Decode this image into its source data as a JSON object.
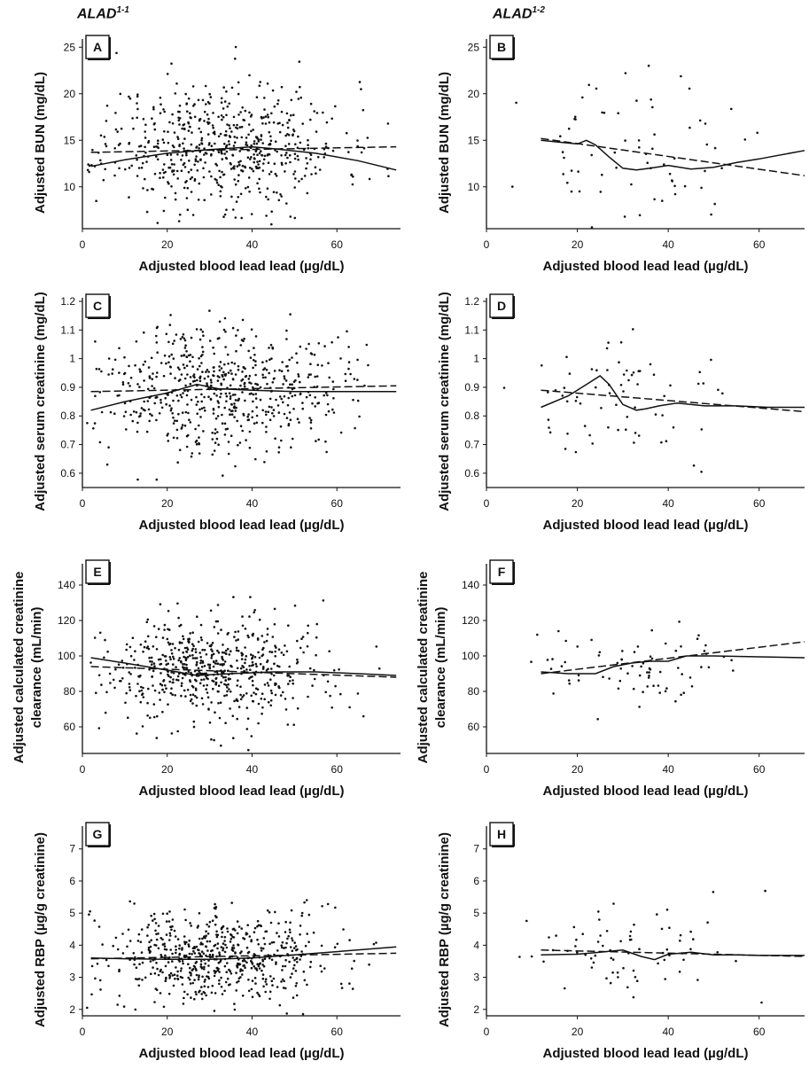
{
  "columns": {
    "left": {
      "base": "ALAD",
      "sup": "1-1"
    },
    "right": {
      "base": "ALAD",
      "sup": "1-2"
    }
  },
  "chart_data": [
    {
      "id": "A",
      "type": "scatter",
      "column": "left",
      "xlabel": "Adjusted blood lead lead (µg/dL)",
      "ylabel": [
        "Adjusted BUN (mg/dL)"
      ],
      "xlim": [
        0,
        75
      ],
      "ylim": [
        5.5,
        25.5
      ],
      "xticks": [
        0,
        20,
        40,
        60
      ],
      "yticks": [
        10,
        15,
        20,
        25
      ],
      "n_points": 620,
      "seed": 11,
      "cluster": {
        "x_mean": 33,
        "x_sd": 14,
        "y_mean": 14.5,
        "y_sd": 3.4
      },
      "series": [
        {
          "name": "",
          "style": "solid",
          "x": [
            2,
            10,
            20,
            30,
            40,
            45,
            55,
            65,
            74
          ],
          "y": [
            12.2,
            12.9,
            13.6,
            14.0,
            14.3,
            14.1,
            13.6,
            12.8,
            11.8
          ]
        },
        {
          "name": "",
          "style": "dashed",
          "x": [
            2,
            74
          ],
          "y": [
            13.7,
            14.3
          ]
        }
      ]
    },
    {
      "id": "B",
      "type": "scatter",
      "column": "right",
      "xlabel": "Adjusted blood lead lead (µg/dL)",
      "ylabel": [
        "Adjusted BUN (mg/dL)"
      ],
      "xlim": [
        0,
        70
      ],
      "ylim": [
        5.5,
        25.5
      ],
      "xticks": [
        0,
        20,
        40,
        60
      ],
      "yticks": [
        10,
        15,
        20,
        25
      ],
      "n_points": 70,
      "seed": 23,
      "cluster": {
        "x_mean": 32,
        "x_sd": 12,
        "y_mean": 13.5,
        "y_sd": 3.8
      },
      "series": [
        {
          "name": "",
          "style": "solid",
          "x": [
            12,
            20,
            22,
            24,
            27,
            30,
            33,
            36,
            40,
            45,
            50,
            55,
            60,
            70
          ],
          "y": [
            15.0,
            14.6,
            15.0,
            14.5,
            13.2,
            12.0,
            11.8,
            12.0,
            12.3,
            11.9,
            12.1,
            12.6,
            13.0,
            13.9
          ]
        },
        {
          "name": "",
          "style": "dashed",
          "x": [
            12,
            70
          ],
          "y": [
            15.2,
            11.2
          ]
        }
      ]
    },
    {
      "id": "C",
      "type": "scatter",
      "column": "left",
      "xlabel": "Adjusted blood lead lead (µg/dL)",
      "ylabel": [
        "Adjusted serum creatinine (mg/dL)"
      ],
      "xlim": [
        0,
        75
      ],
      "ylim": [
        0.55,
        1.2
      ],
      "xticks": [
        0,
        20,
        40,
        60
      ],
      "yticks": [
        0.6,
        0.7,
        0.8,
        0.9,
        1.0,
        1.1,
        1.2
      ],
      "n_points": 620,
      "seed": 37,
      "cluster": {
        "x_mean": 33,
        "x_sd": 14,
        "y_mean": 0.9,
        "y_sd": 0.11
      },
      "series": [
        {
          "name": "",
          "style": "solid",
          "x": [
            2,
            10,
            20,
            27,
            32,
            40,
            50,
            60,
            74
          ],
          "y": [
            0.82,
            0.85,
            0.88,
            0.91,
            0.895,
            0.89,
            0.885,
            0.885,
            0.885
          ]
        },
        {
          "name": "",
          "style": "dashed",
          "x": [
            2,
            74
          ],
          "y": [
            0.885,
            0.905
          ]
        }
      ]
    },
    {
      "id": "D",
      "type": "scatter",
      "column": "right",
      "xlabel": "Adjusted blood lead lead (µg/dL)",
      "ylabel": [
        "Adjusted serum creatinine (mg/dL)"
      ],
      "xlim": [
        0,
        70
      ],
      "ylim": [
        0.55,
        1.2
      ],
      "xticks": [
        0,
        20,
        40,
        60
      ],
      "yticks": [
        0.6,
        0.7,
        0.8,
        0.9,
        1.0,
        1.1,
        1.2
      ],
      "n_points": 70,
      "seed": 41,
      "cluster": {
        "x_mean": 32,
        "x_sd": 12,
        "y_mean": 0.86,
        "y_sd": 0.1
      },
      "series": [
        {
          "name": "",
          "style": "solid",
          "x": [
            12,
            18,
            22,
            25,
            27,
            30,
            33,
            35,
            38,
            42,
            48,
            55,
            62,
            70
          ],
          "y": [
            0.83,
            0.87,
            0.91,
            0.94,
            0.91,
            0.84,
            0.82,
            0.825,
            0.835,
            0.845,
            0.835,
            0.835,
            0.83,
            0.83
          ]
        },
        {
          "name": "",
          "style": "dashed",
          "x": [
            12,
            70
          ],
          "y": [
            0.89,
            0.815
          ]
        }
      ]
    },
    {
      "id": "E",
      "type": "scatter",
      "column": "left",
      "xlabel": "Adjusted blood lead lead (µg/dL)",
      "ylabel": [
        "Adjusted calculated creatinine",
        "clearance (mL/min)"
      ],
      "xlim": [
        0,
        75
      ],
      "ylim": [
        45,
        150
      ],
      "xticks": [
        0,
        20,
        40,
        60
      ],
      "yticks": [
        60,
        80,
        100,
        120,
        140
      ],
      "n_points": 620,
      "seed": 53,
      "cluster": {
        "x_mean": 31,
        "x_sd": 14,
        "y_mean": 92,
        "y_sd": 15
      },
      "series": [
        {
          "name": "",
          "style": "solid",
          "x": [
            2,
            10,
            20,
            27,
            35,
            45,
            55,
            65,
            74
          ],
          "y": [
            99,
            96,
            92,
            89,
            90,
            91,
            91,
            90,
            89
          ]
        },
        {
          "name": "",
          "style": "dashed",
          "x": [
            2,
            74
          ],
          "y": [
            94,
            88
          ]
        }
      ]
    },
    {
      "id": "F",
      "type": "scatter",
      "column": "right",
      "xlabel": "Adjusted blood lead lead (µg/dL)",
      "ylabel": [
        "Adjusted calculated creatinine",
        "clearance (mL/min)"
      ],
      "xlim": [
        0,
        70
      ],
      "ylim": [
        45,
        150
      ],
      "xticks": [
        0,
        20,
        40,
        60
      ],
      "yticks": [
        60,
        80,
        100,
        120,
        140
      ],
      "n_points": 75,
      "seed": 61,
      "cluster": {
        "x_mean": 32,
        "x_sd": 12,
        "y_mean": 95,
        "y_sd": 13
      },
      "series": [
        {
          "name": "",
          "style": "solid",
          "x": [
            12,
            18,
            24,
            28,
            32,
            36,
            40,
            44,
            50,
            60,
            70
          ],
          "y": [
            91,
            90,
            90,
            94,
            96,
            97,
            97,
            100,
            100,
            99.5,
            99
          ]
        },
        {
          "name": "",
          "style": "dashed",
          "x": [
            12,
            70
          ],
          "y": [
            90,
            108
          ]
        }
      ]
    },
    {
      "id": "G",
      "type": "scatter",
      "column": "left",
      "xlabel": "Adjusted blood lead lead (µg/dL)",
      "ylabel": [
        "Adjusted RBP (µg/g creatinine)"
      ],
      "xlim": [
        0,
        75
      ],
      "ylim": [
        1.8,
        7.6
      ],
      "xticks": [
        0,
        20,
        40,
        60
      ],
      "yticks": [
        2,
        3,
        4,
        5,
        6,
        7
      ],
      "n_points": 620,
      "seed": 71,
      "cluster": {
        "x_mean": 31,
        "x_sd": 14,
        "y_mean": 3.6,
        "y_sd": 0.75
      },
      "series": [
        {
          "name": "",
          "style": "solid",
          "x": [
            2,
            10,
            20,
            30,
            40,
            50,
            60,
            74
          ],
          "y": [
            3.6,
            3.58,
            3.56,
            3.56,
            3.6,
            3.7,
            3.8,
            3.95
          ]
        },
        {
          "name": "",
          "style": "dashed",
          "x": [
            2,
            74
          ],
          "y": [
            3.58,
            3.75
          ]
        }
      ]
    },
    {
      "id": "H",
      "type": "scatter",
      "column": "right",
      "xlabel": "Adjusted blood lead lead (µg/dL)",
      "ylabel": [
        "Adjusted RBP (µg/g creatinine)"
      ],
      "xlim": [
        0,
        70
      ],
      "ylim": [
        1.8,
        7.6
      ],
      "xticks": [
        0,
        20,
        40,
        60
      ],
      "yticks": [
        2,
        3,
        4,
        5,
        6,
        7
      ],
      "n_points": 75,
      "seed": 83,
      "cluster": {
        "x_mean": 32,
        "x_sd": 12,
        "y_mean": 3.8,
        "y_sd": 0.75
      },
      "series": [
        {
          "name": "",
          "style": "solid",
          "x": [
            12,
            20,
            25,
            30,
            34,
            37,
            40,
            45,
            50,
            55,
            60,
            70
          ],
          "y": [
            3.7,
            3.72,
            3.78,
            3.85,
            3.65,
            3.55,
            3.72,
            3.78,
            3.7,
            3.7,
            3.68,
            3.68
          ]
        },
        {
          "name": "",
          "style": "dashed",
          "x": [
            12,
            70
          ],
          "y": [
            3.85,
            3.65
          ]
        }
      ]
    }
  ]
}
